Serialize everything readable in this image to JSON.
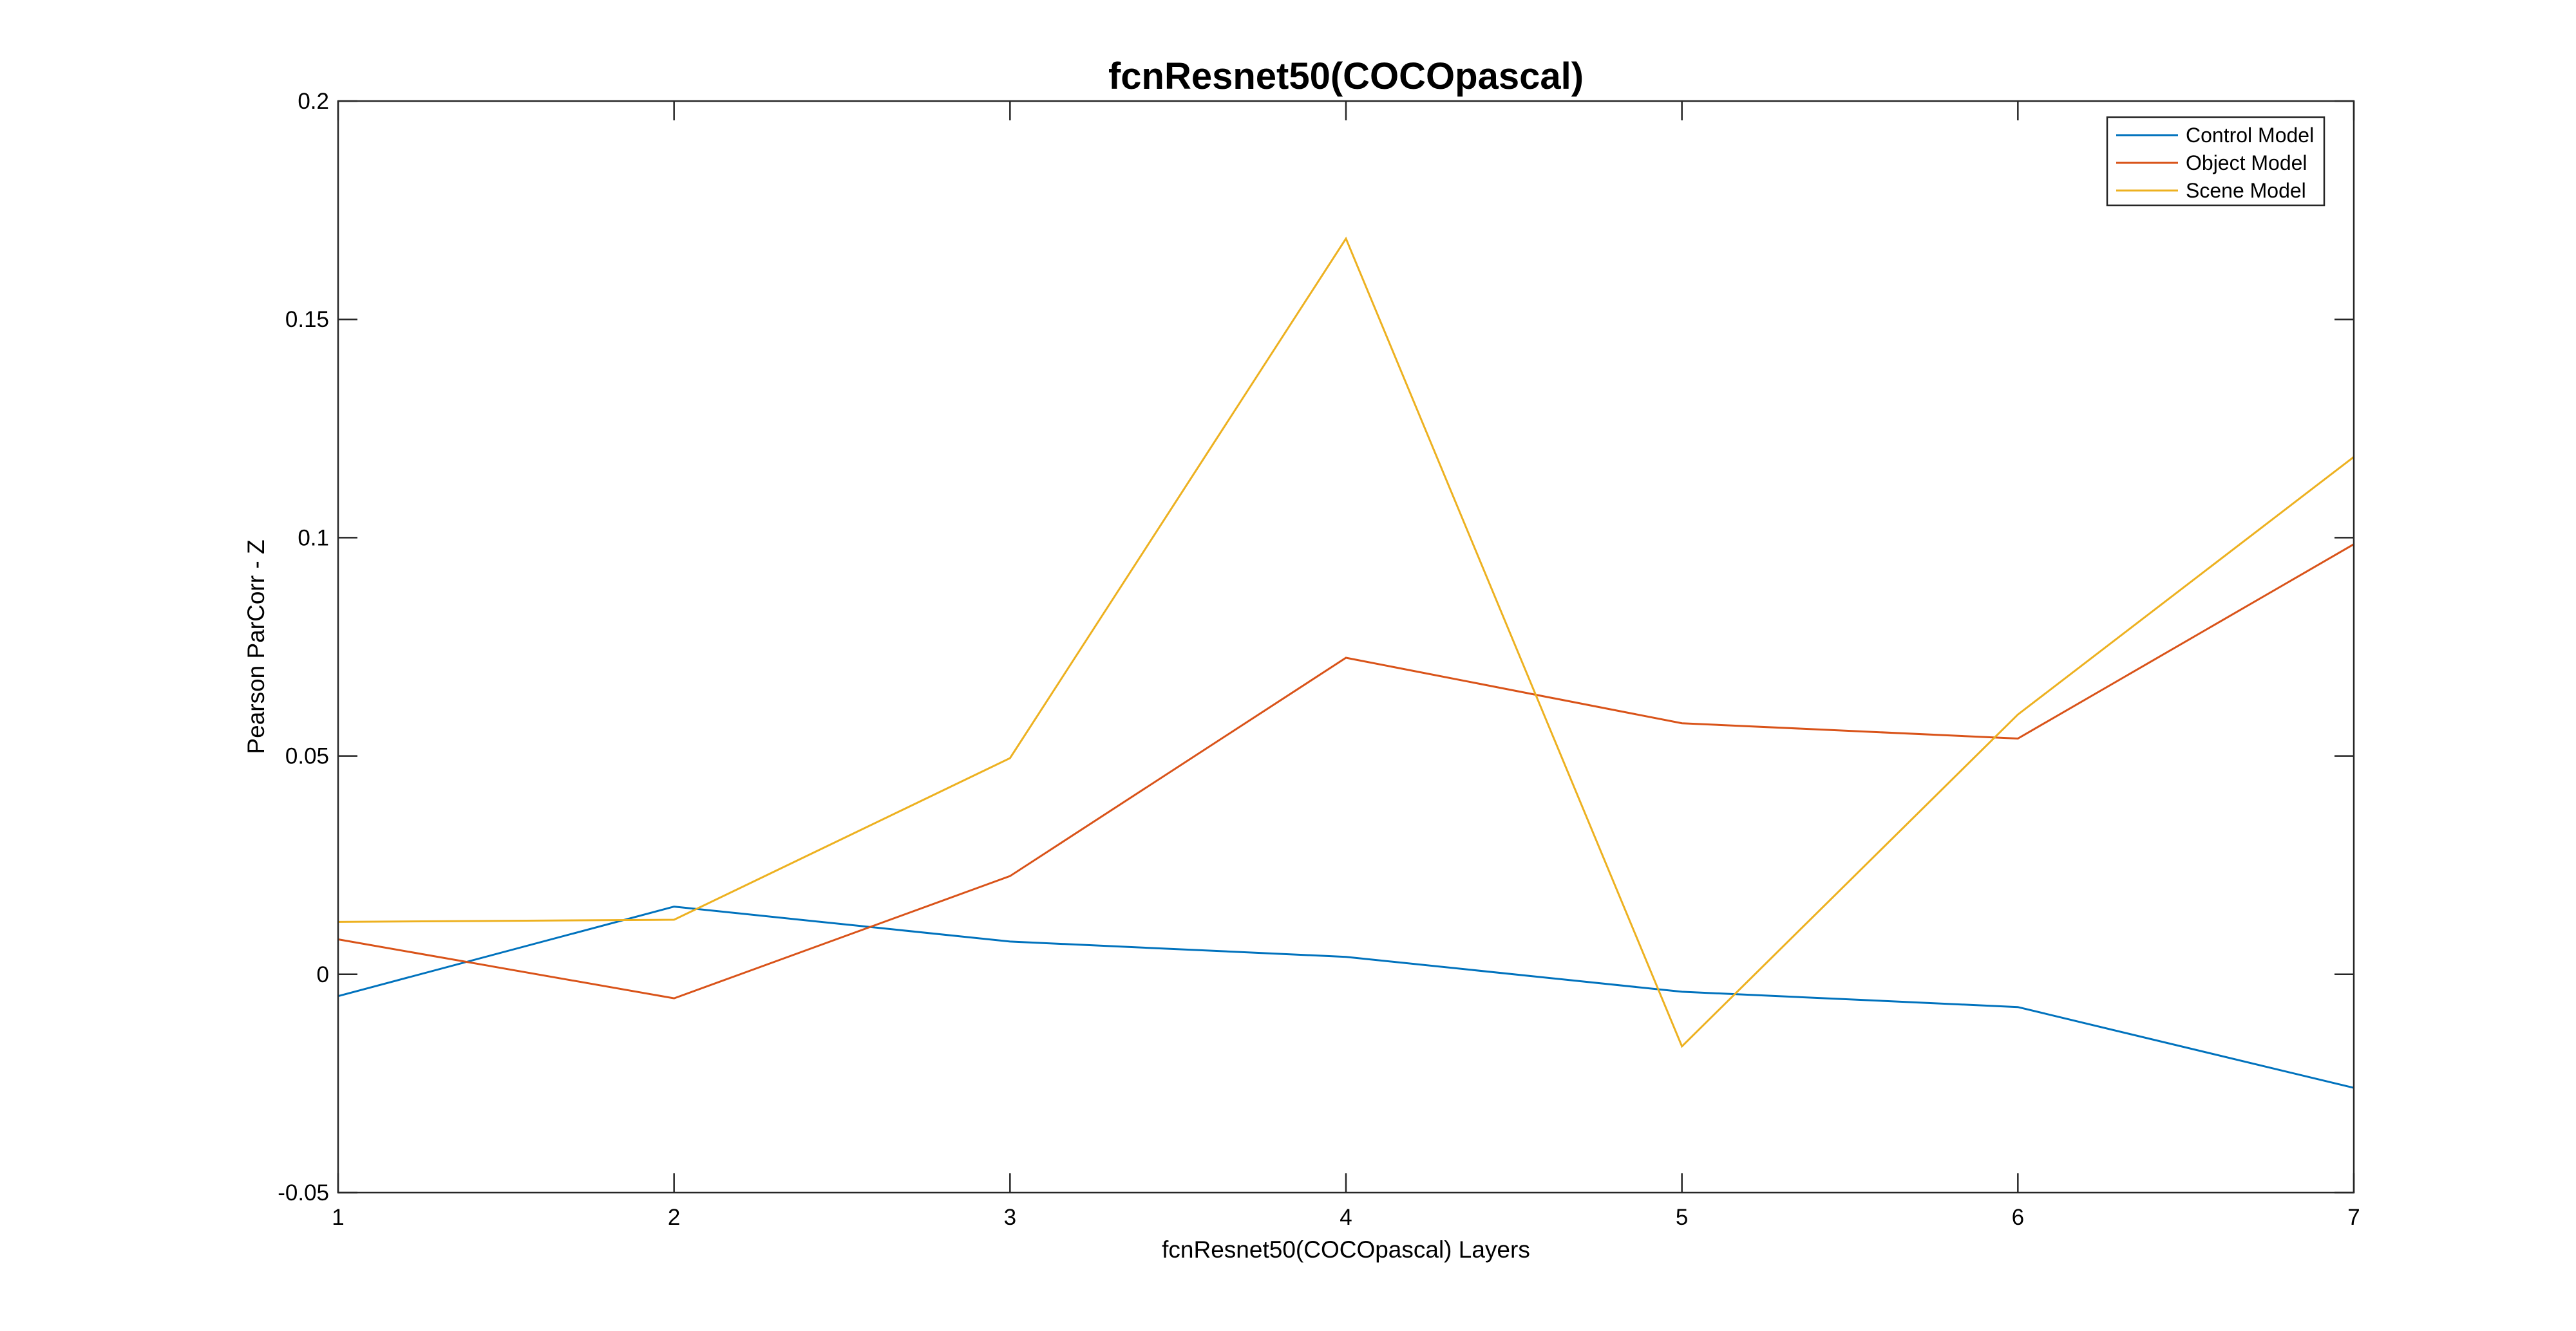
{
  "colors": {
    "control": "#0072BD",
    "object": "#D95319",
    "scene": "#EDB120",
    "axis": "#262626"
  },
  "chart_data": {
    "type": "line",
    "title": "fcnResnet50(COCOpascal)",
    "xlabel": "fcnResnet50(COCOpascal) Layers",
    "ylabel": "Pearson ParCorr - Z",
    "xlim": [
      1,
      7
    ],
    "ylim": [
      -0.05,
      0.2
    ],
    "grid": false,
    "legend_position": "top-right",
    "x": [
      1,
      2,
      3,
      4,
      5,
      6,
      7
    ],
    "xticks": [
      "1",
      "2",
      "3",
      "4",
      "5",
      "6",
      "7"
    ],
    "yticks": [
      "-0.05",
      "0",
      "0.05",
      "0.1",
      "0.15",
      "0.2"
    ],
    "series": [
      {
        "name": "Control Model",
        "color": "#0072BD",
        "values": [
          -0.005,
          0.0155,
          0.0075,
          0.004,
          -0.004,
          -0.0075,
          -0.026
        ]
      },
      {
        "name": "Object Model",
        "color": "#D95319",
        "values": [
          0.008,
          -0.0055,
          0.0225,
          0.0725,
          0.0575,
          0.054,
          0.0985
        ]
      },
      {
        "name": "Scene Model",
        "color": "#EDB120",
        "values": [
          0.012,
          0.0125,
          0.0495,
          0.1685,
          -0.0165,
          0.0595,
          0.1185
        ]
      }
    ]
  }
}
